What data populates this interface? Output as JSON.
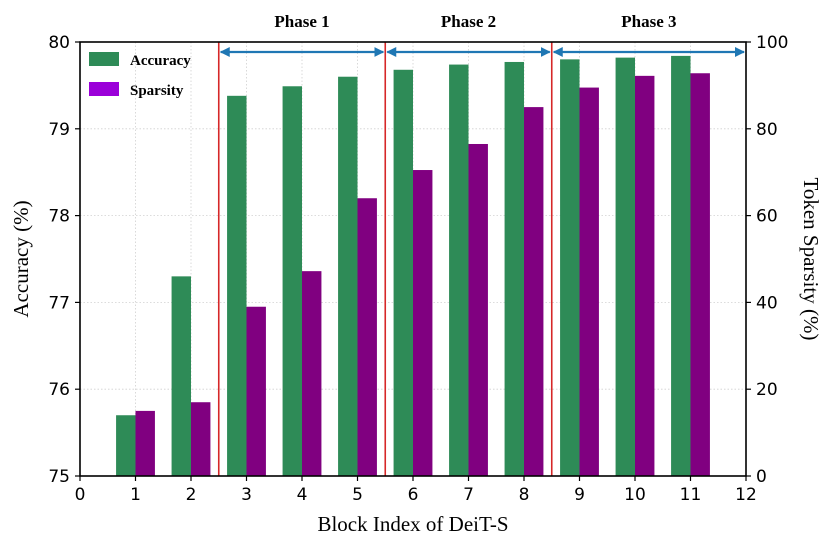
{
  "chart_data": {
    "type": "bar",
    "xlabel": "Block Index of DeiT-S",
    "ylabel_left": "Accuracy (%)",
    "ylabel_right": "Token Sparsity (%)",
    "xlim": [
      0,
      12
    ],
    "ylim_left": [
      75,
      80
    ],
    "ylim_right": [
      0,
      100
    ],
    "x_ticks": [
      "0",
      "1",
      "2",
      "3",
      "4",
      "5",
      "6",
      "7",
      "8",
      "9",
      "10",
      "11",
      "12"
    ],
    "y_ticks_left": [
      "75",
      "76",
      "77",
      "78",
      "79",
      "80"
    ],
    "y_ticks_right": [
      "0",
      "20",
      "40",
      "60",
      "80",
      "100"
    ],
    "categories": [
      1,
      2,
      3,
      4,
      5,
      6,
      7,
      8,
      9,
      10,
      11
    ],
    "series": [
      {
        "name": "Accuracy",
        "axis": "left",
        "color": "#2e8b57",
        "values": [
          75.7,
          77.3,
          79.38,
          79.49,
          79.6,
          79.68,
          79.74,
          79.77,
          79.8,
          79.82,
          79.84
        ]
      },
      {
        "name": "Sparsity",
        "axis": "right",
        "color": "#800080",
        "values": [
          15,
          17,
          39,
          47.2,
          64,
          70.5,
          76.5,
          85,
          89.5,
          92.2,
          92.8
        ]
      }
    ],
    "legend": {
      "position": "top-left",
      "items": [
        "Accuracy",
        "Sparsity"
      ],
      "colors": [
        "#2e8b57",
        "#9b00d9"
      ]
    },
    "phases": [
      {
        "label": "Phase 1",
        "start": 2.5,
        "end": 5.5
      },
      {
        "label": "Phase 2",
        "start": 5.5,
        "end": 8.5
      },
      {
        "label": "Phase 3",
        "start": 8.5,
        "end": 12
      }
    ],
    "phase_line_color": "#d62728",
    "phase_arrow_color": "#1f77b4",
    "grid": true
  }
}
